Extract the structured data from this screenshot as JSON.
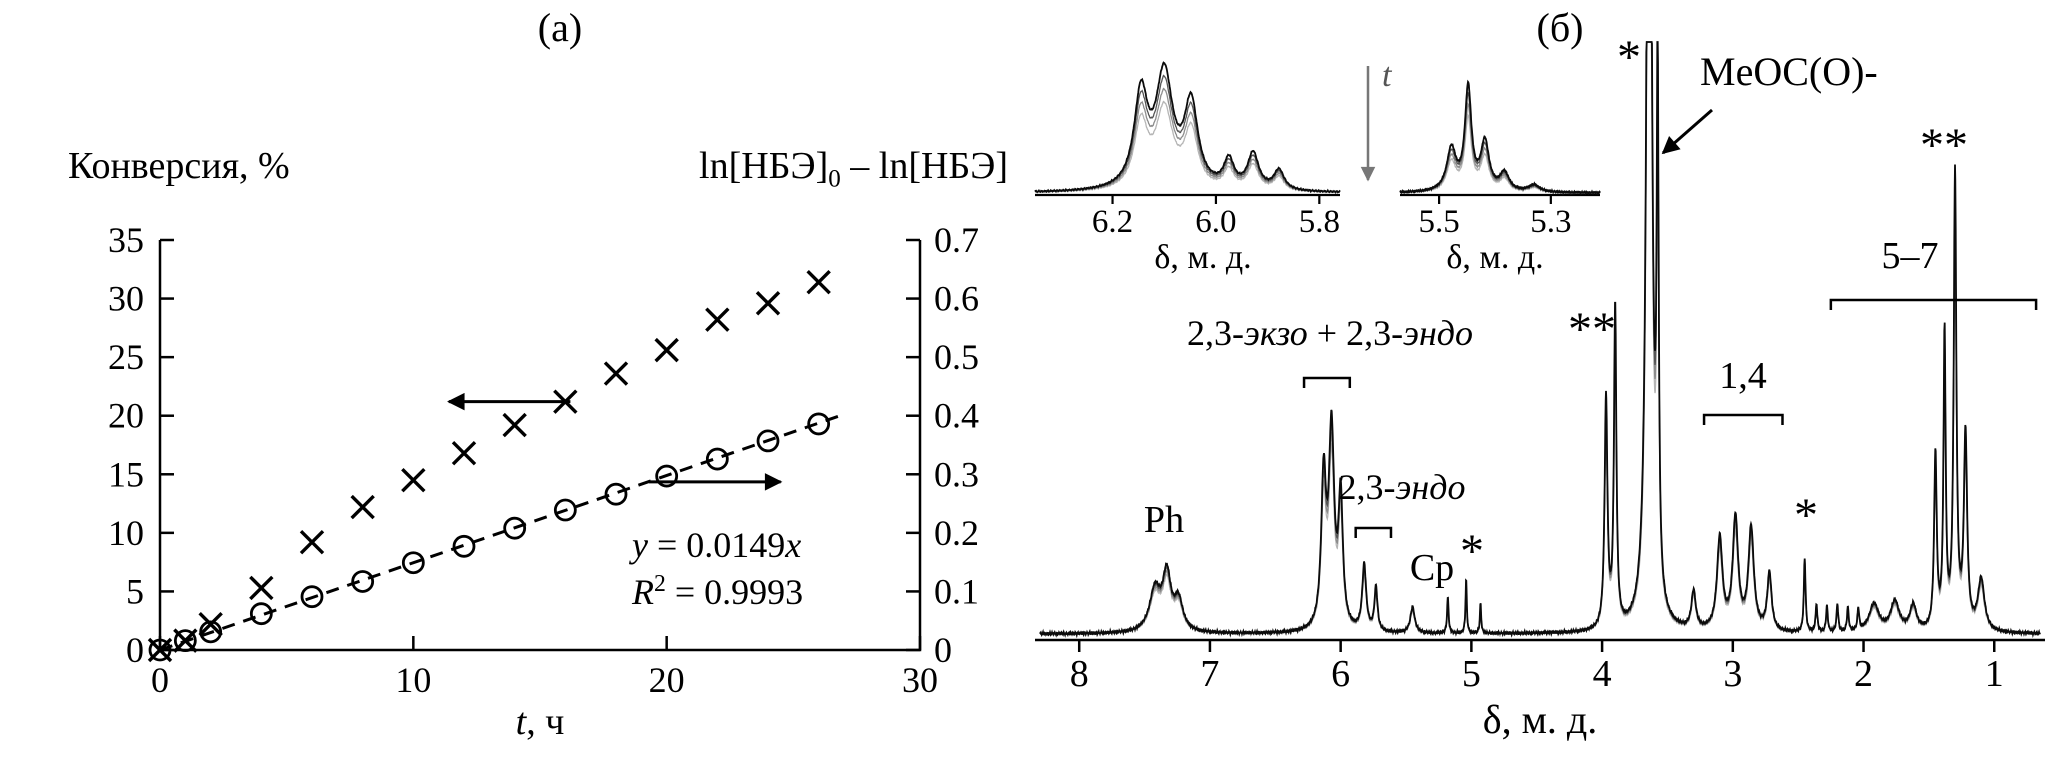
{
  "figure": {
    "panel_a_title": "(а)",
    "panel_b_title": "(б)"
  },
  "panel_a": {
    "left_axis_label": "Конверсия, %",
    "ln_pre": "ln[НБЭ]",
    "ln_sub": "0",
    "ln_post": " – ln[НБЭ]",
    "x_var": "t",
    "x_rest": ", ч",
    "fit_y": "y",
    "fit_mid": " = 0.0149",
    "fit_x": "x",
    "r_base": "R",
    "r_sup": "2",
    "r_rest": " = 0.9993"
  },
  "panel_b": {
    "x_label": "δ, м. д.",
    "inset_x_label": "δ, м. д.",
    "labels": {
      "ph": "Ph",
      "exo_endo_prefix": "2,3-",
      "exo_endo_italic1": "экзо",
      "exo_endo_mid": " + 2,3-",
      "exo_endo_italic2": "эндо",
      "endo_prefix": "2,3-",
      "endo_italic": "эндо",
      "cp": "Cp",
      "star": "*",
      "double_star": "**",
      "meoc": "MeOC(O)-",
      "one_four": "1,4",
      "five_seven": "5–7",
      "t_arrow": "t"
    }
  },
  "chart_data": [
    {
      "type": "scatter",
      "panel": "а",
      "xlabel": "t, ч",
      "ylabel_left": "Конверсия, %",
      "ylabel_right": "ln[НБЭ]0 – ln[НБЭ]",
      "xlim": [
        0,
        30
      ],
      "ylim_left": [
        0,
        35
      ],
      "ylim_right": [
        0,
        0.7
      ],
      "x_ticks": [
        0,
        10,
        20,
        30
      ],
      "left_ticks": [
        0,
        5,
        10,
        15,
        20,
        25,
        30,
        35
      ],
      "right_ticks": [
        0,
        0.1,
        0.2,
        0.3,
        0.4,
        0.5,
        0.6,
        0.7
      ],
      "series": [
        {
          "name": "conversion_percent",
          "marker": "x",
          "axis": "left",
          "x": [
            0,
            1,
            2,
            4,
            6,
            8,
            10,
            12,
            14,
            16,
            18,
            20,
            22,
            24,
            26
          ],
          "y": [
            0,
            0.8,
            2.2,
            5.3,
            9.2,
            12.2,
            14.5,
            16.8,
            19.2,
            21.2,
            23.6,
            25.6,
            28.2,
            29.6,
            31.4
          ]
        },
        {
          "name": "ln_NBE0_minus_ln_NBE",
          "marker": "o",
          "axis": "right",
          "x": [
            0,
            1,
            2,
            4,
            6,
            8,
            10,
            12,
            14,
            16,
            18,
            20,
            22,
            24,
            26
          ],
          "y": [
            0,
            0.016,
            0.031,
            0.062,
            0.091,
            0.117,
            0.149,
            0.177,
            0.208,
            0.239,
            0.266,
            0.297,
            0.326,
            0.357,
            0.386
          ]
        }
      ],
      "fit": {
        "slope": 0.0149,
        "r2": 0.9993,
        "x_range": [
          0,
          27
        ],
        "style": "dashed",
        "axis": "right"
      },
      "annotations": [
        "y = 0.0149x",
        "R2 = 0.9993"
      ],
      "axis_arrows": [
        {
          "points_to": "left",
          "at": {
            "t_from": 16.2,
            "t_to": 11.4,
            "value_left": 21.2
          }
        },
        {
          "points_to": "right",
          "at": {
            "t_from": 19.3,
            "t_to": 24.5,
            "value_right": 0.287
          }
        }
      ]
    },
    {
      "type": "line",
      "panel": "б",
      "xlabel": "δ, м. д.",
      "xlim": [
        8.3,
        0.65
      ],
      "x_reversed": true,
      "x_ticks": [
        8,
        7,
        6,
        5,
        4,
        3,
        2,
        1
      ],
      "n_traces": 4,
      "peaks": [
        [
          7.42,
          42,
          0.05
        ],
        [
          7.33,
          55,
          0.038
        ],
        [
          7.24,
          30,
          0.04
        ],
        [
          6.13,
          148,
          0.022
        ],
        [
          6.07,
          195,
          0.025
        ],
        [
          6.0,
          128,
          0.02
        ],
        [
          5.82,
          66,
          0.018
        ],
        [
          5.73,
          44,
          0.014
        ],
        [
          5.45,
          26,
          0.02
        ],
        [
          5.18,
          36,
          0.007
        ],
        [
          5.04,
          54,
          0.006
        ],
        [
          4.93,
          30,
          0.006
        ],
        [
          3.97,
          230,
          0.013
        ],
        [
          3.9,
          320,
          0.011
        ],
        [
          3.64,
          1400,
          0.018
        ],
        [
          3.575,
          520,
          0.009
        ],
        [
          3.3,
          38,
          0.02
        ],
        [
          3.1,
          92,
          0.025
        ],
        [
          2.98,
          112,
          0.025
        ],
        [
          2.86,
          102,
          0.025
        ],
        [
          2.72,
          58,
          0.02
        ],
        [
          2.45,
          74,
          0.008
        ],
        [
          2.36,
          28,
          0.008
        ],
        [
          2.28,
          26,
          0.008
        ],
        [
          2.2,
          28,
          0.008
        ],
        [
          2.12,
          24,
          0.008
        ],
        [
          2.04,
          22,
          0.008
        ],
        [
          1.92,
          28,
          0.045
        ],
        [
          1.76,
          30,
          0.04
        ],
        [
          1.62,
          26,
          0.03
        ],
        [
          1.45,
          175,
          0.012
        ],
        [
          1.38,
          295,
          0.01
        ],
        [
          1.3,
          455,
          0.012
        ],
        [
          1.22,
          195,
          0.015
        ],
        [
          1.1,
          52,
          0.03
        ]
      ],
      "insets": [
        {
          "xlim": [
            6.35,
            5.76
          ],
          "ticks": [
            "6.2",
            "6.0",
            "5.8"
          ],
          "x_label": "δ, м. д.",
          "peaks": [
            [
              6.145,
              92,
              0.016
            ],
            [
              6.1,
              112,
              0.02
            ],
            [
              6.048,
              82,
              0.016
            ],
            [
              5.975,
              28,
              0.012
            ],
            [
              5.928,
              36,
              0.013
            ],
            [
              5.878,
              20,
              0.012
            ]
          ]
        },
        {
          "xlim": [
            5.57,
            5.212
          ],
          "ticks": [
            "5.5",
            "5.3"
          ],
          "x_label": "δ, м. д.",
          "peaks": [
            [
              5.478,
              42,
              0.01
            ],
            [
              5.448,
              102,
              0.007
            ],
            [
              5.418,
              48,
              0.009
            ],
            [
              5.383,
              18,
              0.01
            ],
            [
              5.33,
              7,
              0.012
            ]
          ]
        }
      ],
      "assignments": [
        {
          "label": "Ph",
          "delta": 7.35
        },
        {
          "label": "2,3-экзо + 2,3-эндо",
          "delta_range": [
            6.28,
            5.93
          ]
        },
        {
          "label": "2,3-эндо",
          "delta_range": [
            5.885,
            5.615
          ]
        },
        {
          "label": "Cp",
          "delta": 5.45
        },
        {
          "label": "*",
          "delta": 5.04
        },
        {
          "label": "**",
          "delta": 3.93
        },
        {
          "label": "*",
          "delta": 3.7
        },
        {
          "label": "MeOC(O)-",
          "delta": 3.64
        },
        {
          "label": "1,4",
          "delta_range": [
            3.22,
            2.62
          ]
        },
        {
          "label": "*",
          "delta": 2.45
        },
        {
          "label": "5–7",
          "delta_range": [
            2.25,
            0.68
          ]
        },
        {
          "label": "**",
          "delta": 1.3
        }
      ]
    }
  ]
}
